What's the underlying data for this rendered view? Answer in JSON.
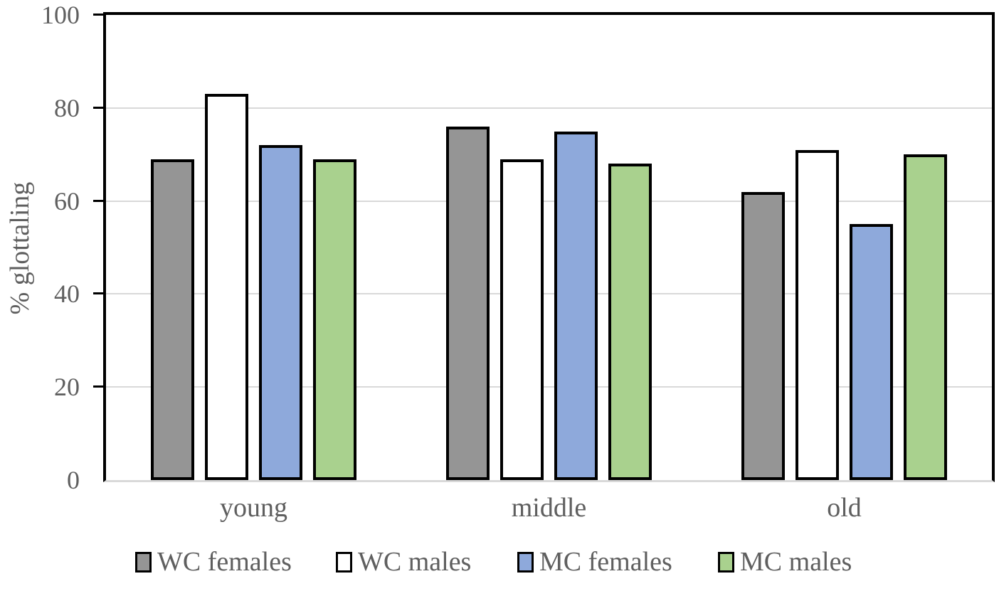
{
  "chart_data": {
    "type": "bar",
    "title": "",
    "ylabel": "% glottaling",
    "xlabel": "",
    "categories": [
      "young",
      "middle",
      "old"
    ],
    "series": [
      {
        "name": "WC females",
        "color": "#959595",
        "values": [
          69,
          76,
          62
        ]
      },
      {
        "name": "WC males",
        "color": "#ffffff",
        "values": [
          83,
          69,
          71
        ]
      },
      {
        "name": "MC females",
        "color": "#8ea9db",
        "values": [
          72,
          75,
          55
        ]
      },
      {
        "name": "MC males",
        "color": "#a9d18e",
        "values": [
          69,
          68,
          70
        ]
      }
    ],
    "ylim": [
      0,
      100
    ],
    "yticks": [
      0,
      20,
      40,
      60,
      80,
      100
    ],
    "grid": true,
    "legend_position": "bottom",
    "bar_border_color": "#000000",
    "gridline_color": "#d9d9d9",
    "axis_text_color": "#5f5f5f"
  }
}
